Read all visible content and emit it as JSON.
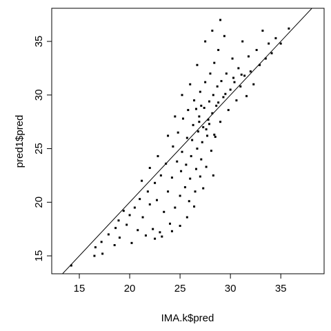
{
  "chart_data": {
    "type": "scatter",
    "x_label": "IMA.k$pred",
    "y_label": "pred1$pred",
    "xlim": [
      12.26,
      39.3
    ],
    "ylim": [
      13.33,
      38.09
    ],
    "xticks": [
      15,
      20,
      25,
      30,
      35
    ],
    "yticks": [
      15,
      20,
      25,
      30,
      35
    ],
    "color": "#000000",
    "reference_line": {
      "intercept": 0,
      "slope": 1
    },
    "x": [
      14.2,
      16.5,
      16.6,
      17.2,
      17.3,
      17.9,
      18.5,
      18.6,
      18.9,
      19.0,
      19.4,
      19.7,
      20.0,
      20.2,
      20.5,
      20.8,
      21.0,
      21.3,
      21.6,
      21.8,
      22.0,
      22.3,
      22.5,
      22.7,
      23.0,
      23.1,
      23.4,
      23.6,
      23.8,
      24.0,
      24.2,
      24.3,
      24.5,
      24.7,
      24.8,
      25.0,
      25.1,
      25.2,
      25.3,
      25.5,
      25.6,
      25.7,
      25.8,
      25.9,
      26.0,
      26.1,
      26.2,
      26.3,
      26.4,
      26.5,
      26.6,
      26.7,
      26.8,
      26.9,
      27.0,
      27.0,
      27.1,
      27.2,
      27.3,
      27.4,
      27.5,
      27.6,
      27.7,
      27.8,
      27.9,
      28.0,
      28.1,
      28.2,
      28.3,
      28.4,
      28.5,
      28.6,
      28.7,
      28.8,
      29.0,
      29.1,
      29.3,
      29.4,
      29.6,
      29.8,
      30.0,
      30.2,
      30.4,
      30.6,
      30.8,
      31.0,
      31.2,
      31.4,
      31.6,
      31.8,
      32.0,
      32.3,
      32.6,
      32.9,
      33.2,
      33.5,
      33.8,
      34.1,
      34.5,
      35.0,
      35.8,
      29.0,
      28.2,
      27.5,
      26.7,
      26.0,
      25.2,
      24.5,
      23.8,
      22.8,
      22.0,
      21.2,
      26.4,
      25.7,
      25.0,
      24.2,
      23.2,
      22.5,
      27.3,
      28.3,
      26.9,
      27.6,
      28.8,
      29.5,
      30.3,
      31.1,
      27.1,
      26.6,
      27.9,
      28.4
    ],
    "y": [
      14.1,
      15.0,
      15.8,
      16.3,
      15.2,
      17.0,
      16.0,
      17.6,
      18.3,
      16.7,
      19.2,
      17.9,
      18.8,
      16.2,
      19.5,
      17.4,
      20.3,
      18.6,
      16.9,
      21.0,
      19.8,
      17.5,
      21.8,
      20.2,
      17.2,
      22.5,
      19.1,
      23.6,
      21.0,
      18.0,
      22.3,
      25.2,
      19.5,
      23.8,
      26.5,
      20.6,
      22.9,
      24.7,
      27.8,
      21.4,
      23.5,
      26.0,
      28.6,
      20.1,
      22.2,
      24.3,
      25.8,
      27.2,
      29.5,
      21.0,
      23.1,
      25.0,
      26.6,
      28.0,
      30.3,
      22.4,
      24.0,
      25.6,
      27.0,
      28.8,
      31.2,
      23.3,
      26.2,
      27.7,
      29.4,
      32.0,
      24.8,
      28.3,
      30.0,
      33.0,
      26.1,
      29.0,
      30.8,
      34.2,
      27.5,
      31.3,
      29.8,
      35.5,
      32.0,
      28.6,
      30.5,
      33.4,
      31.2,
      29.5,
      32.5,
      30.8,
      35.0,
      31.8,
      29.9,
      33.6,
      32.2,
      31.0,
      34.2,
      32.8,
      36.0,
      33.4,
      34.8,
      33.9,
      35.3,
      34.8,
      36.2,
      37.0,
      36.0,
      35.0,
      32.8,
      31.0,
      30.0,
      28.0,
      26.2,
      24.3,
      23.2,
      22.0,
      19.6,
      18.6,
      17.8,
      17.3,
      16.8,
      16.6,
      21.3,
      22.5,
      27.5,
      26.8,
      29.3,
      30.1,
      31.6,
      31.9,
      29.0,
      28.7,
      27.3,
      26.3
    ]
  }
}
